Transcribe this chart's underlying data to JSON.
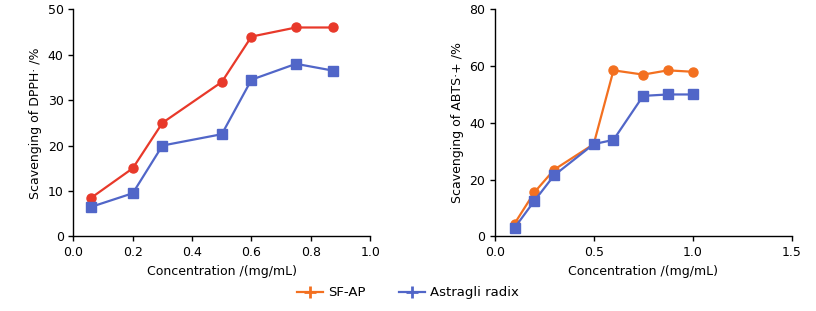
{
  "dpph": {
    "sfap_x": [
      0.06,
      0.2,
      0.3,
      0.5,
      0.6,
      0.75,
      0.875
    ],
    "sfap_y": [
      8.5,
      15.0,
      25.0,
      34.0,
      44.0,
      46.0,
      46.0
    ],
    "astragli_x": [
      0.06,
      0.2,
      0.3,
      0.5,
      0.6,
      0.75,
      0.875
    ],
    "astragli_y": [
      6.5,
      9.5,
      20.0,
      22.5,
      34.5,
      38.0,
      36.5
    ],
    "sfap_color": "#E8392A",
    "astragli_color": "#5166C8",
    "ylabel": "Scavenging of DPPH· /%",
    "xlabel": "Concentration /(mg/mL)",
    "ylim": [
      0,
      50
    ],
    "yticks": [
      0,
      10,
      20,
      30,
      40,
      50
    ],
    "xlim": [
      0.0,
      1.0
    ],
    "xticks": [
      0.0,
      0.2,
      0.4,
      0.6,
      0.8,
      1.0
    ]
  },
  "abts": {
    "sfap_x": [
      0.1,
      0.2,
      0.3,
      0.5,
      0.6,
      0.75,
      0.875,
      1.0
    ],
    "sfap_y": [
      4.5,
      15.5,
      23.5,
      32.5,
      58.5,
      57.0,
      58.5,
      58.0
    ],
    "astragli_x": [
      0.1,
      0.2,
      0.3,
      0.5,
      0.6,
      0.75,
      0.875,
      1.0
    ],
    "astragli_y": [
      3.0,
      12.5,
      21.5,
      32.5,
      34.0,
      49.5,
      50.0,
      50.0
    ],
    "sfap_color": "#F37020",
    "astragli_color": "#5166C8",
    "ylabel": "Scavenging of ABTS·+ /%",
    "xlabel": "Concentration /(mg/mL)",
    "ylim": [
      0,
      80
    ],
    "yticks": [
      0,
      20,
      40,
      60,
      80
    ],
    "xlim": [
      0.0,
      1.5
    ],
    "xticks": [
      0.0,
      0.5,
      1.0,
      1.5
    ]
  },
  "legend_sfap_color": "#F37020",
  "legend_astragli_color": "#5166C8",
  "sfap_label": "SF-AP",
  "astragli_label": "Astragli radix",
  "marker_circle": "o",
  "marker_square": "s",
  "linewidth": 1.6,
  "markersize": 6.5,
  "tick_labelsize": 9,
  "axis_labelsize": 9
}
